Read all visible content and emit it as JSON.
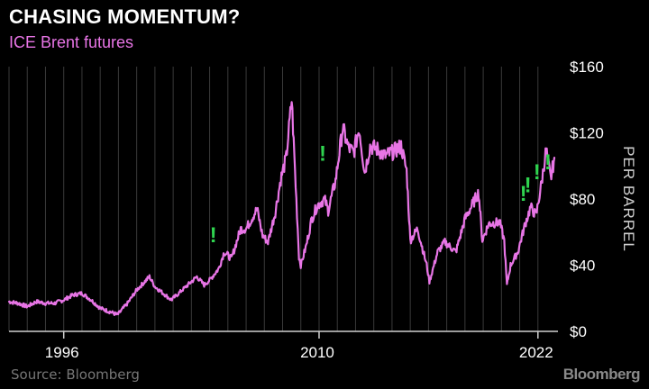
{
  "header": {
    "title": "CHASING MOMENTUM?",
    "subtitle": "ICE Brent futures"
  },
  "footer": {
    "source": "Source: Bloomberg",
    "brand": "Bloomberg"
  },
  "colors": {
    "background": "#000000",
    "line": "#e875e6",
    "grid": "#3a3a3a",
    "text": "#ffffff",
    "accent_marker": "#2fd34f",
    "muted": "#8a8a8a"
  },
  "chart_data": {
    "type": "line",
    "title": "CHASING MOMENTUM?",
    "subtitle": "ICE Brent futures",
    "ylabel": "PER BARREL",
    "xlabel": "",
    "ylim": [
      0,
      160
    ],
    "y_ticks": [
      {
        "value": 0,
        "label": "$0"
      },
      {
        "value": 40,
        "label": "$40"
      },
      {
        "value": 80,
        "label": "$80"
      },
      {
        "value": 120,
        "label": "$120"
      },
      {
        "value": 160,
        "label": "$160"
      }
    ],
    "x_ticks": [
      {
        "value": 1996,
        "label": "1996"
      },
      {
        "value": 2010,
        "label": "2010"
      },
      {
        "value": 2022,
        "label": "2022"
      }
    ],
    "xlim": [
      1993,
      2022.9
    ],
    "grid": "vertical, yearly",
    "series": [
      {
        "x": [
          1993.0,
          1993.5,
          1994.0,
          1994.5,
          1995.0,
          1995.5,
          1996.0,
          1996.5,
          1997.0,
          1997.5,
          1998.0,
          1998.5,
          1998.95,
          1999.5,
          2000.0,
          2000.7,
          2001.0,
          2001.9,
          2002.5,
          2003.0,
          2003.3,
          2003.7,
          2004.0,
          2004.5,
          2004.8,
          2005.2,
          2005.7,
          2006.0,
          2006.6,
          2006.9,
          2007.2,
          2007.6,
          2007.9,
          2008.2,
          2008.5,
          2008.9,
          2009.0,
          2009.3,
          2009.6,
          2009.9,
          2010.3,
          2010.5,
          2010.9,
          2011.3,
          2011.6,
          2011.9,
          2012.2,
          2012.5,
          2012.8,
          2013.2,
          2013.6,
          2014.0,
          2014.5,
          2014.8,
          2015.0,
          2015.4,
          2015.9,
          2016.05,
          2016.5,
          2016.9,
          2017.5,
          2018.0,
          2018.75,
          2018.95,
          2019.3,
          2019.9,
          2020.15,
          2020.3,
          2020.5,
          2020.9,
          2021.3,
          2021.6,
          2021.9,
          2022.2,
          2022.45,
          2022.7,
          2022.9
        ],
        "values": [
          18,
          17,
          15,
          18,
          17,
          17,
          19,
          22,
          23,
          19,
          14,
          12,
          10,
          17,
          25,
          33,
          27,
          19,
          25,
          30,
          33,
          28,
          31,
          38,
          48,
          44,
          62,
          62,
          74,
          58,
          54,
          72,
          92,
          105,
          140,
          45,
          40,
          52,
          68,
          76,
          80,
          73,
          91,
          123,
          111,
          108,
          123,
          96,
          112,
          110,
          106,
          108,
          112,
          97,
          55,
          62,
          40,
          30,
          48,
          54,
          48,
          68,
          84,
          55,
          65,
          66,
          55,
          28,
          40,
          48,
          65,
          75,
          70,
          90,
          110,
          92,
          105
        ]
      }
    ],
    "annotations": [
      {
        "text": "!",
        "x": 2004.2,
        "y": 54
      },
      {
        "text": "!",
        "x": 2010.2,
        "y": 103
      },
      {
        "text": "!",
        "x": 2021.2,
        "y": 79
      },
      {
        "text": "!",
        "x": 2021.45,
        "y": 84
      },
      {
        "text": "!",
        "x": 2021.95,
        "y": 92
      },
      {
        "text": "!",
        "x": 2022.55,
        "y": 98
      }
    ]
  }
}
